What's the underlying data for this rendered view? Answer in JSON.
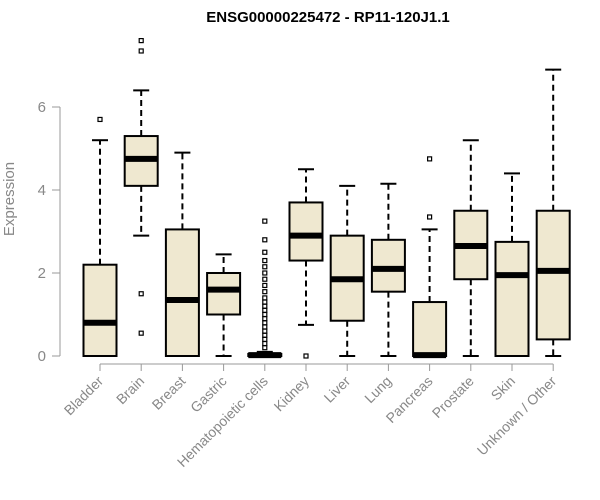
{
  "chart_data": {
    "type": "box",
    "title": "ENSG00000225472 - RP11-120J1.1",
    "ylabel": "Expression",
    "xlabel": "",
    "ylim": [
      0,
      7.2
    ],
    "yticks": [
      0,
      2,
      4,
      6
    ],
    "box_fill": "#EFE8D0",
    "categories": [
      "Bladder",
      "Brain",
      "Breast",
      "Gastric",
      "Hematopoietic cells",
      "Kidney",
      "Liver",
      "Lung",
      "Pancreas",
      "Prostate",
      "Skin",
      "Unknown / Other"
    ],
    "boxes": [
      {
        "whisker_low": 0,
        "q1": 0,
        "median": 0.8,
        "q3": 2.2,
        "whisker_high": 5.2,
        "outliers": [
          5.7
        ]
      },
      {
        "whisker_low": 2.9,
        "q1": 4.1,
        "median": 4.75,
        "q3": 5.3,
        "whisker_high": 6.4,
        "outliers": [
          7.6,
          7.35,
          1.5,
          0.55
        ]
      },
      {
        "whisker_low": 0,
        "q1": 0,
        "median": 1.35,
        "q3": 3.05,
        "whisker_high": 4.9,
        "outliers": []
      },
      {
        "whisker_low": 0,
        "q1": 1.0,
        "median": 1.6,
        "q3": 2.0,
        "whisker_high": 2.45,
        "outliers": []
      },
      {
        "whisker_low": 0,
        "q1": 0,
        "median": 0.02,
        "q3": 0.05,
        "whisker_high": 0.1,
        "outliers": [
          3.25,
          2.8,
          2.5,
          2.3,
          2.15,
          2.0,
          1.85,
          1.7,
          1.55,
          1.4,
          1.3,
          1.2,
          1.1,
          1.0,
          0.9,
          0.8,
          0.7,
          0.6,
          0.5,
          0.4,
          0.3,
          0.2
        ]
      },
      {
        "whisker_low": 0.75,
        "q1": 2.3,
        "median": 2.9,
        "q3": 3.7,
        "whisker_high": 4.5,
        "outliers": [
          0
        ]
      },
      {
        "whisker_low": 0,
        "q1": 0.85,
        "median": 1.85,
        "q3": 2.9,
        "whisker_high": 4.1,
        "outliers": []
      },
      {
        "whisker_low": 0,
        "q1": 1.55,
        "median": 2.1,
        "q3": 2.8,
        "whisker_high": 4.15,
        "outliers": []
      },
      {
        "whisker_low": 0,
        "q1": 0,
        "median": 0.02,
        "q3": 1.3,
        "whisker_high": 3.05,
        "outliers": [
          4.75,
          3.35
        ]
      },
      {
        "whisker_low": 0,
        "q1": 1.85,
        "median": 2.65,
        "q3": 3.5,
        "whisker_high": 5.2,
        "outliers": []
      },
      {
        "whisker_low": 0,
        "q1": 0,
        "median": 1.95,
        "q3": 2.75,
        "whisker_high": 4.4,
        "outliers": []
      },
      {
        "whisker_low": 0,
        "q1": 0.4,
        "median": 2.05,
        "q3": 3.5,
        "whisker_high": 6.9,
        "outliers": []
      }
    ]
  }
}
